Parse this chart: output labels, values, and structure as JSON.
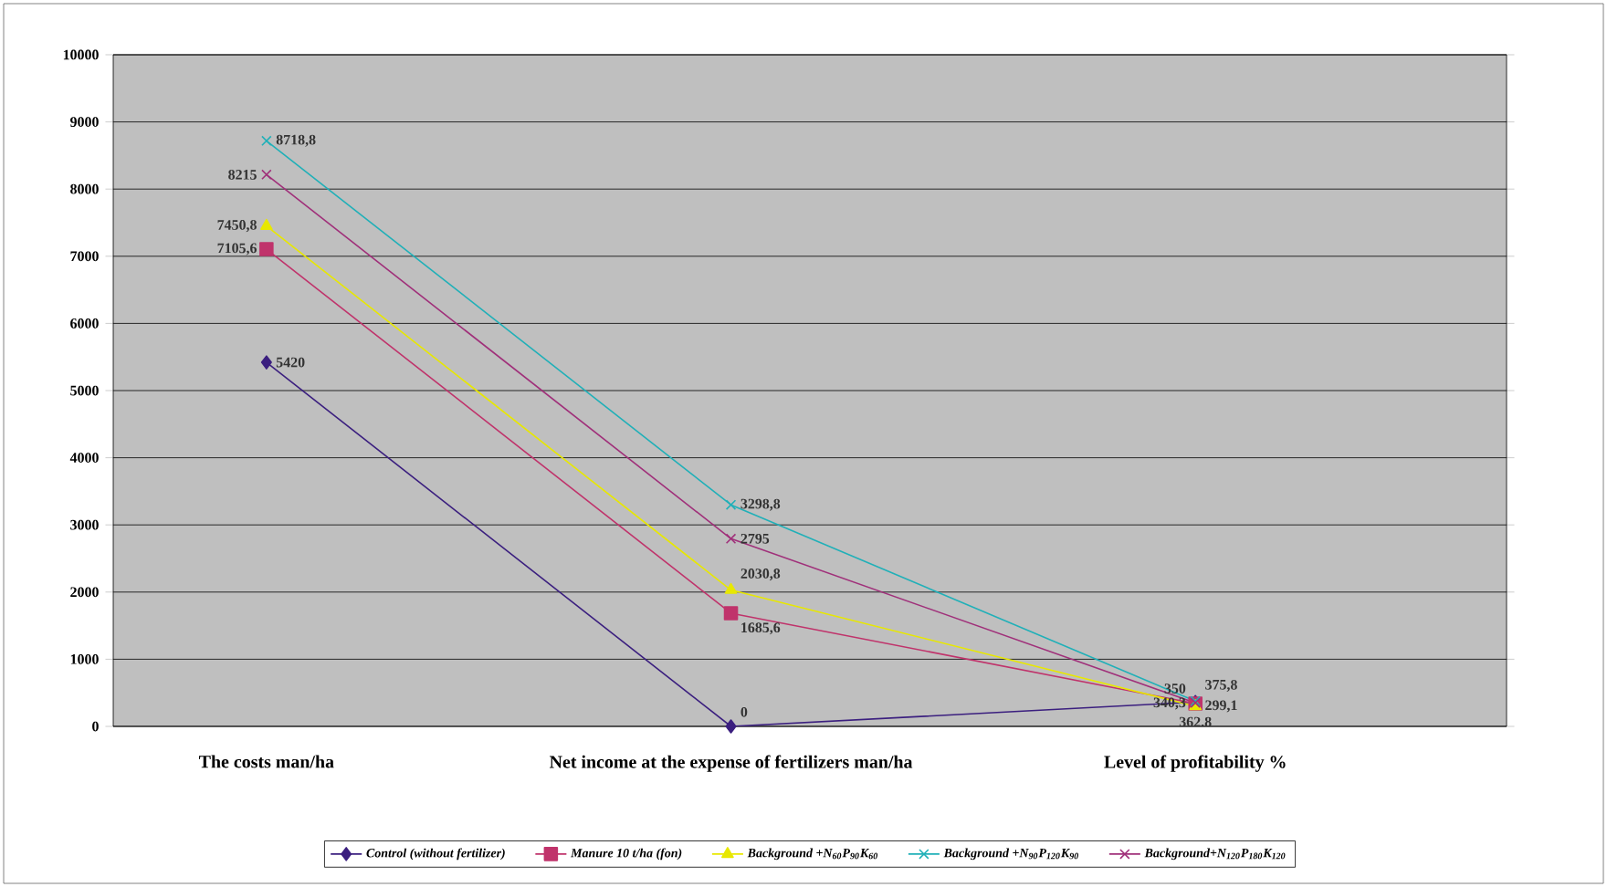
{
  "chart_data": {
    "type": "line",
    "categories": [
      "The costs man/ha",
      "Net income at the expense of fertilizers man/ha",
      "Level of profitability %"
    ],
    "series": [
      {
        "name": "Control (without fertilizer)",
        "color": "#3b1f7f",
        "marker": "diamond",
        "values": [
          5420,
          0,
          362.8
        ],
        "value_labels": [
          "5420",
          "0",
          "362,8"
        ]
      },
      {
        "name": "Manure 10 t/ha (fon)",
        "color": "#c0336b",
        "marker": "square",
        "values": [
          7105.6,
          1685.6,
          340.3
        ],
        "value_labels": [
          "7105,6",
          "1685,6",
          "340,3"
        ]
      },
      {
        "name": "Background +N$_{60}$P$_{90}$K$_{60}$",
        "color": "#e8e800",
        "marker": "triangle",
        "values": [
          7450.8,
          2030.8,
          299.1
        ],
        "value_labels": [
          "7450,8",
          "2030,8",
          "299,1"
        ]
      },
      {
        "name": "Background +N$_{90}$P$_{120}$K$_{90}$",
        "color": "#20b0b8",
        "marker": "cross",
        "values": [
          8718.8,
          3298.8,
          375.8
        ],
        "value_labels": [
          "8718,8",
          "3298,8",
          "375,8"
        ]
      },
      {
        "name": "Background+N$_{120}$P$_{180}$K$_{120}$",
        "color": "#a0307a",
        "marker": "cross",
        "values": [
          8215,
          2795,
          350
        ],
        "value_labels": [
          "8215",
          "2795",
          "350"
        ]
      }
    ],
    "ylim": [
      0,
      10000
    ],
    "yticks": [
      0,
      1000,
      2000,
      3000,
      4000,
      5000,
      6000,
      7000,
      8000,
      9000,
      10000
    ],
    "grid": "y",
    "legend": "bottom"
  }
}
